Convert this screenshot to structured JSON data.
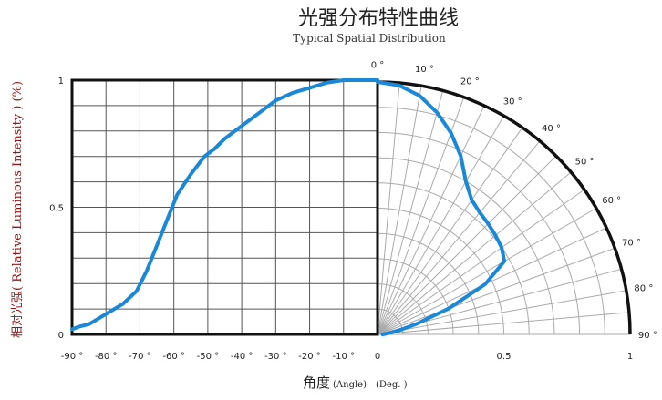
{
  "chart_data": {
    "type": "line",
    "title": "光强分布特性曲线",
    "subtitle": "Typical Spatial Distribution",
    "ylabel": "相对光强( Relative Luminous Intensity ) (%)",
    "xlabel": "角度",
    "xlabel_en": "(Angle)",
    "xlabel_unit": "(Deg. )",
    "line_color": "#1a88d6",
    "cartesian": {
      "xlim": [
        -90,
        0
      ],
      "ylim": [
        0,
        1
      ],
      "x_tick_labels": [
        "-90 °",
        "-80 °",
        "-70 °",
        "-60 °",
        "-50 °",
        "-40 °",
        "-30 °",
        "-20 °",
        "-10 °",
        "0"
      ],
      "y_tick_labels": [
        "0",
        "0.5",
        "1"
      ],
      "grid": true,
      "x": [
        -90,
        -88,
        -85,
        -80,
        -75,
        -71,
        -68,
        -65,
        -62,
        -59,
        -55,
        -51,
        -48,
        -45,
        -40,
        -35,
        -30,
        -25,
        -20,
        -15,
        -10,
        -5,
        0
      ],
      "y": [
        0.02,
        0.03,
        0.04,
        0.08,
        0.12,
        0.17,
        0.25,
        0.35,
        0.45,
        0.55,
        0.63,
        0.7,
        0.73,
        0.77,
        0.82,
        0.87,
        0.92,
        0.95,
        0.97,
        0.99,
        1.0,
        1.0,
        1.0
      ]
    },
    "polar": {
      "theta_range": [
        0,
        90
      ],
      "r_max": 1,
      "angle_labels": [
        "0 °",
        "10 °",
        "20 °",
        "30 °",
        "40 °",
        "50 °",
        "60 °",
        "70 °",
        "80 °",
        "90 °"
      ],
      "r_tick_labels": [
        "0.5",
        "1"
      ],
      "theta": [
        0,
        5,
        10,
        15,
        20,
        25,
        30,
        35,
        40,
        45,
        50,
        55,
        60,
        65,
        70,
        75,
        80,
        85,
        90
      ],
      "r": [
        1.0,
        0.99,
        0.96,
        0.91,
        0.85,
        0.78,
        0.7,
        0.65,
        0.63,
        0.62,
        0.61,
        0.6,
        0.58,
        0.47,
        0.3,
        0.16,
        0.08,
        0.04,
        0.02
      ]
    }
  }
}
